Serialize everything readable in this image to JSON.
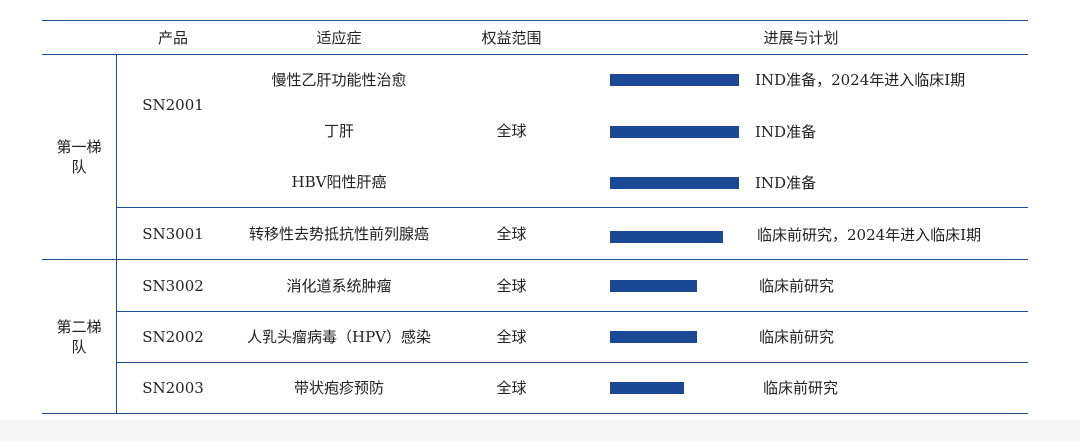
{
  "headers": {
    "product": "产品",
    "indication": "适应症",
    "rights": "权益范围",
    "progress": "进展与计划"
  },
  "tiers": [
    {
      "label": "第一梯\n队"
    },
    {
      "label": "第二梯\n队"
    }
  ],
  "rows": [
    {
      "product": "SN2001",
      "indication": "慢性乙肝功能性治愈",
      "rights": "全球",
      "plan": "IND准备，2024年进入临床I期",
      "progress": 0.86
    },
    {
      "product": "SN2001",
      "indication": "丁肝",
      "rights": "全球",
      "plan": "IND准备",
      "progress": 0.86
    },
    {
      "product": "SN2001",
      "indication": "HBV阳性肝癌",
      "rights": "全球",
      "plan": "IND准备",
      "progress": 0.86
    },
    {
      "product": "SN3001",
      "indication": "转移性去势抵抗性前列腺癌",
      "rights": "全球",
      "plan": "临床前研究，2024年进入临床I期",
      "progress": 0.75
    },
    {
      "product": "SN3002",
      "indication": "消化道系统肿瘤",
      "rights": "全球",
      "plan": "临床前研究",
      "progress": 0.58
    },
    {
      "product": "SN2002",
      "indication": "人乳头瘤病毒（HPV）感染",
      "rights": "全球",
      "plan": "临床前研究",
      "progress": 0.58
    },
    {
      "product": "SN2003",
      "indication": "带状疱疹预防",
      "rights": "全球",
      "plan": "临床前研究",
      "progress": 0.49
    }
  ],
  "colors": {
    "rule": "#1f4e8c",
    "bar": "#1a4895"
  }
}
